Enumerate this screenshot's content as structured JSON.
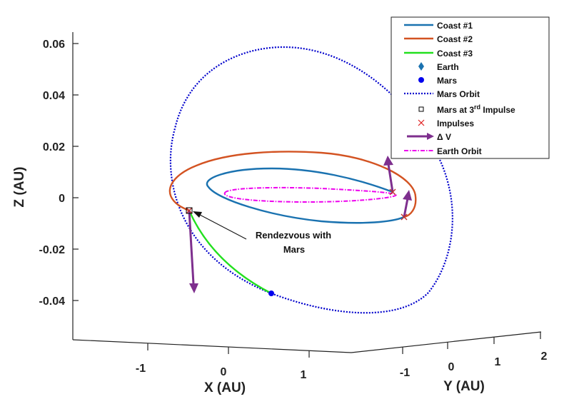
{
  "chart_data": {
    "type": "line",
    "title": "",
    "xlabel": "X (AU)",
    "ylabel": "Y (AU)",
    "zlabel": "Z (AU)",
    "x_ticks": [
      "-1",
      "0",
      "1"
    ],
    "y_ticks": [
      "-1",
      "0",
      "1",
      "2"
    ],
    "z_ticks": [
      "0.06",
      "0.04",
      "0.02",
      "0",
      "-0.02",
      "-0.04"
    ],
    "zlim": [
      -0.05,
      0.065
    ],
    "grid": false,
    "legend_position": "top-right",
    "legend": [
      {
        "label": "Coast #1",
        "color": "#1a72b0",
        "style": "solid-line"
      },
      {
        "label": "Coast #2",
        "color": "#d35322",
        "style": "solid-line"
      },
      {
        "label": "Coast #3",
        "color": "#22e01e",
        "style": "solid-line"
      },
      {
        "label": "Earth",
        "color": "#1a72b0",
        "style": "diamond-marker"
      },
      {
        "label": "Mars",
        "color": "#0000ee",
        "style": "circle-marker"
      },
      {
        "label": "Mars Orbit",
        "color": "#0000cc",
        "style": "dotted-line"
      },
      {
        "label": "Mars at 3",
        "sup": "rd",
        "tail": " Impulse",
        "color": "#000000",
        "style": "square-marker"
      },
      {
        "label": "Impulses",
        "color": "#e02020",
        "style": "x-marker"
      },
      {
        "label": "Δ V",
        "color": "#7e2f8e",
        "style": "arrow"
      },
      {
        "label": "Earth Orbit",
        "color": "#ee00ee",
        "style": "dashdot-line"
      }
    ],
    "series": [
      {
        "name": "Coast #1"
      },
      {
        "name": "Coast #2"
      },
      {
        "name": "Coast #3"
      },
      {
        "name": "Mars Orbit"
      },
      {
        "name": "Earth Orbit"
      }
    ],
    "annotation": {
      "line1": "Rendezvous with",
      "line2": "Mars"
    }
  }
}
